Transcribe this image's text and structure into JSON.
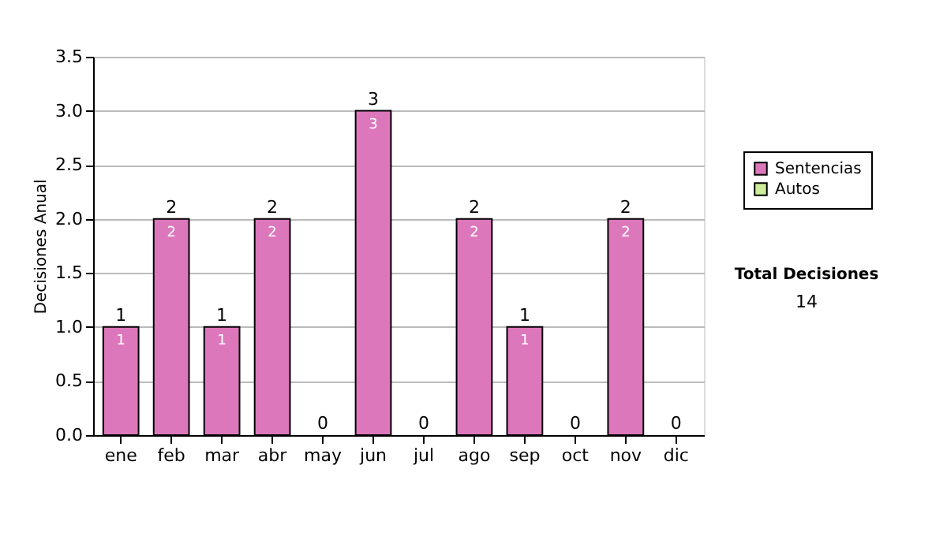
{
  "chart_data": {
    "type": "bar",
    "stacked": true,
    "ylabel": "Decisiones Anual",
    "categories": [
      "ene",
      "feb",
      "mar",
      "abr",
      "may",
      "jun",
      "jul",
      "ago",
      "sep",
      "oct",
      "nov",
      "dic"
    ],
    "series": [
      {
        "name": "Sentencias",
        "color": "#dd77bb",
        "values": [
          1,
          2,
          1,
          2,
          0,
          3,
          0,
          2,
          1,
          0,
          2,
          0
        ],
        "value_labels": [
          "1",
          "2",
          "1",
          "2",
          null,
          "3",
          null,
          "2",
          "1",
          null,
          "2",
          null
        ]
      },
      {
        "name": "Autos",
        "color": "#ccee99",
        "values": [
          0,
          0,
          0,
          0,
          0,
          0,
          0,
          0,
          0,
          0,
          0,
          0
        ]
      }
    ],
    "totals": [
      "1",
      "2",
      "1",
      "2",
      "0",
      "3",
      "0",
      "2",
      "1",
      "0",
      "2",
      "0"
    ],
    "ylim": [
      0,
      3.5
    ],
    "yticks": [
      {
        "value": 0,
        "label": "0.0"
      },
      {
        "value": 0.5,
        "label": "0.5"
      },
      {
        "value": 1,
        "label": "1.0"
      },
      {
        "value": 1.5,
        "label": "1.5"
      },
      {
        "value": 2,
        "label": "2.0"
      },
      {
        "value": 2.5,
        "label": "2.5"
      },
      {
        "value": 3,
        "label": "3.0"
      },
      {
        "value": 3.5,
        "label": "3.5"
      }
    ],
    "grid": "y",
    "legend": "right",
    "annotations": [
      "Total Decisiones",
      "14"
    ]
  }
}
